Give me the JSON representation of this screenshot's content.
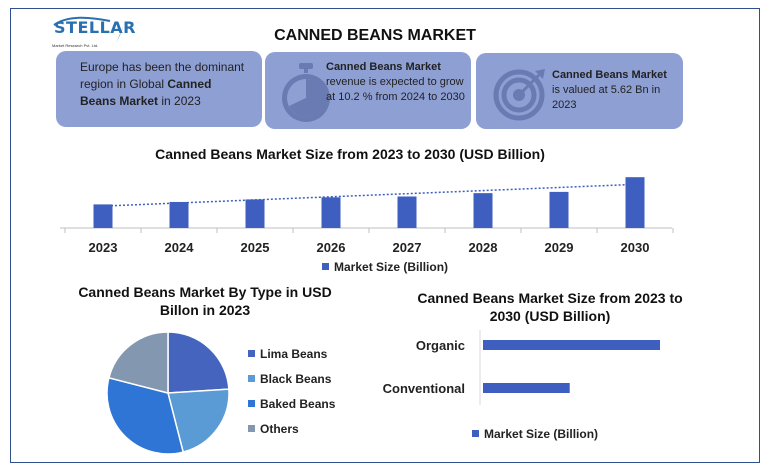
{
  "logo": {
    "name": "STELLAR",
    "tagline": "Market Research Pvt. Ltd."
  },
  "title": "CANNED BEANS MARKET",
  "cards": [
    {
      "pre": "Europe has been the dominant region in Global ",
      "bold": "Canned Beans Market",
      "post": " in 2023",
      "icon": ""
    },
    {
      "pre": "",
      "bold": "Canned Beans Market",
      "post": " revenue is expected to grow at 10.2 % from 2024 to 2030",
      "icon": "stopwatch-icon"
    },
    {
      "pre": "",
      "bold": "Canned Beans Market",
      "post": " is valued at 5.62 Bn in 2023",
      "icon": "target-icon"
    }
  ],
  "colors": {
    "card_bg": "#8e9fd4",
    "bar": "#3e5fbf",
    "lima": "#4464bd",
    "black": "#5b9bd5",
    "baked": "#2e75d6",
    "others": "#8497b0"
  },
  "chart_data": [
    {
      "type": "bar",
      "title": "Canned Beans Market Size from 2023 to 2030 (USD Billion)",
      "categories": [
        "2023",
        "2024",
        "2025",
        "2026",
        "2027",
        "2028",
        "2029",
        "2030"
      ],
      "series": [
        {
          "name": "Market Size (Billion)",
          "values": [
            5.62,
            6.2,
            6.8,
            7.3,
            7.5,
            8.3,
            8.6,
            12.1
          ]
        }
      ],
      "trendline": "dotted linear",
      "legend": "bottom",
      "grid": false
    },
    {
      "type": "pie",
      "title": "Canned Beans Market By Type in USD Billon in 2023",
      "labels": [
        "Lima Beans",
        "Black Beans",
        "Baked Beans",
        "Others"
      ],
      "values": [
        24,
        22,
        33,
        21
      ],
      "legend": "right"
    },
    {
      "type": "bar",
      "orientation": "horizontal",
      "title": "Canned Beans Market Size from 2023 to 2030 (USD Billion)",
      "categories": [
        "Organic",
        "Conventional"
      ],
      "series": [
        {
          "name": "Market Size (Billion)",
          "values": [
            100,
            49
          ]
        }
      ],
      "legend": "bottom"
    }
  ]
}
